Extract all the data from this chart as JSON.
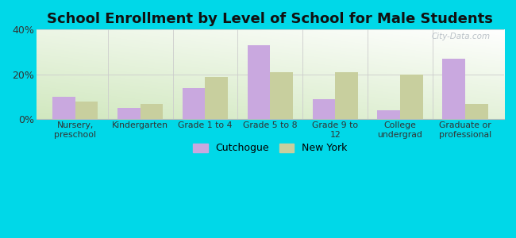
{
  "title": "School Enrollment by Level of School for Male Students",
  "categories": [
    "Nursery,\npreschool",
    "Kindergarten",
    "Grade 1 to 4",
    "Grade 5 to 8",
    "Grade 9 to\n12",
    "College\nundergrad",
    "Graduate or\nprofessional"
  ],
  "cutchogue": [
    10.0,
    5.0,
    14.0,
    33.0,
    9.0,
    4.0,
    27.0
  ],
  "new_york": [
    8.0,
    7.0,
    19.0,
    21.0,
    21.0,
    20.0,
    7.0
  ],
  "cutchogue_color": "#c9a8df",
  "new_york_color": "#c8cf9e",
  "background_outer": "#00d8e8",
  "ylim": [
    0,
    40
  ],
  "yticks": [
    0,
    20,
    40
  ],
  "ytick_labels": [
    "0%",
    "20%",
    "40%"
  ],
  "legend_cutchogue": "Cutchogue",
  "legend_new_york": "New York",
  "bar_width": 0.35,
  "title_fontsize": 13,
  "watermark": "City-Data.com"
}
